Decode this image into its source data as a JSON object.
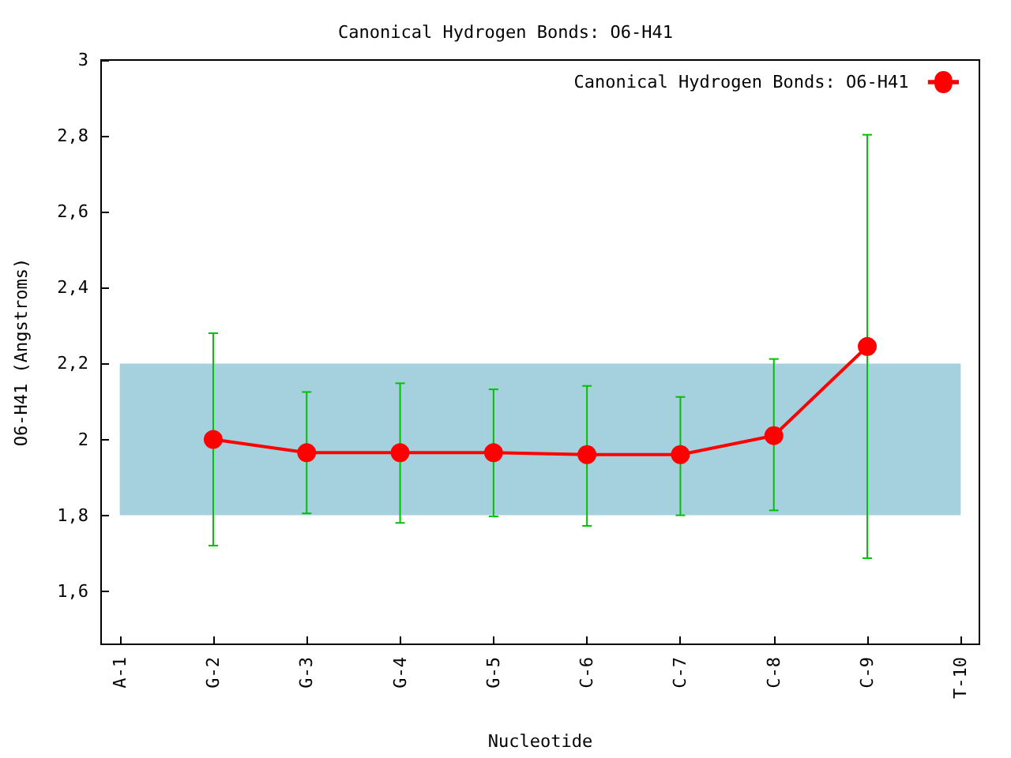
{
  "chart_data": {
    "type": "line",
    "title": "Canonical Hydrogen Bonds: O6-H41",
    "xlabel": "Nucleotide",
    "ylabel": "O6-H41 (Angstroms)",
    "categories": [
      "A-1",
      "G-2",
      "G-3",
      "G-4",
      "G-5",
      "C-6",
      "C-7",
      "C-8",
      "C-9",
      "T-10"
    ],
    "series": [
      {
        "name": "Canonical Hydrogen Bonds: O6-H41",
        "color": "#ff0000",
        "values": [
          null,
          2.0,
          1.965,
          1.965,
          1.965,
          1.96,
          1.96,
          2.01,
          2.245,
          null
        ],
        "errors": [
          null,
          [
            1.72,
            2.28
          ],
          [
            1.805,
            2.125
          ],
          [
            1.78,
            2.148
          ],
          [
            1.797,
            2.132
          ],
          [
            1.772,
            2.141
          ],
          [
            1.8,
            2.112
          ],
          [
            1.813,
            2.212
          ],
          [
            1.687,
            2.803
          ],
          null
        ]
      }
    ],
    "ylim": [
      1.46,
      3
    ],
    "yticks": [
      {
        "value": 1.6,
        "label": "1,6"
      },
      {
        "value": 1.8,
        "label": "1,8"
      },
      2,
      {
        "value": 2.2,
        "label": "2,2"
      },
      {
        "value": 2.4,
        "label": "2,4"
      },
      {
        "value": 2.6,
        "label": "2,6"
      },
      {
        "value": 2.8,
        "label": "2,8"
      },
      3
    ],
    "bands": [
      {
        "axis": "y",
        "from": 1.8,
        "to": 2.2,
        "color": "#a5d1de"
      }
    ],
    "legend": "top right",
    "marker": "circle",
    "line_style": "solid",
    "grid": false
  }
}
